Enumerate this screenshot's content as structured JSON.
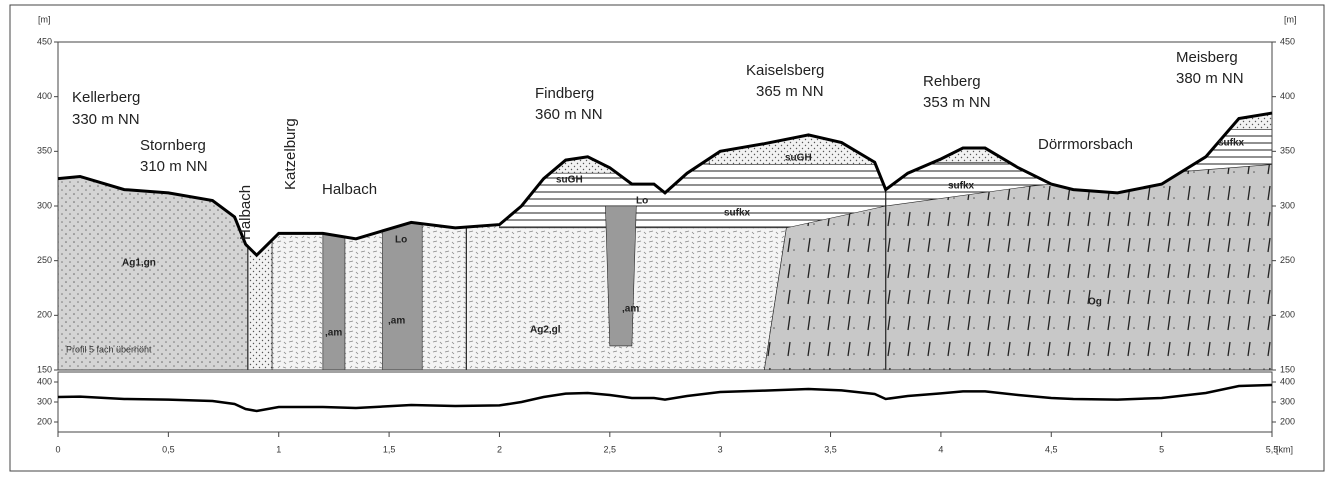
{
  "chart_data": {
    "type": "line",
    "y_unit": "[m]",
    "x_unit": "[km]",
    "x": [
      0,
      0.1,
      0.3,
      0.5,
      0.7,
      0.8,
      0.85,
      0.9,
      0.95,
      1.0,
      1.2,
      1.35,
      1.6,
      1.8,
      2.0,
      2.1,
      2.2,
      2.3,
      2.4,
      2.5,
      2.6,
      2.7,
      2.75,
      2.85,
      3.0,
      3.2,
      3.4,
      3.55,
      3.7,
      3.75,
      3.85,
      4.0,
      4.1,
      4.2,
      4.35,
      4.5,
      4.6,
      4.8,
      5.0,
      5.2,
      5.35,
      5.5
    ],
    "values": [
      325,
      327,
      315,
      312,
      305,
      290,
      265,
      255,
      265,
      275,
      275,
      270,
      285,
      280,
      283,
      300,
      325,
      342,
      345,
      335,
      320,
      320,
      312,
      330,
      350,
      357,
      365,
      358,
      340,
      315,
      330,
      343,
      353,
      353,
      335,
      320,
      315,
      312,
      320,
      345,
      380,
      385
    ],
    "color": "#000000",
    "xlim": [
      0,
      5.5
    ],
    "xticks": [
      0,
      {
        "value": 0.5,
        "label": "0,5"
      },
      1,
      {
        "value": 1.5,
        "label": "1,5"
      },
      2,
      {
        "value": 2.5,
        "label": "2,5"
      },
      3,
      {
        "value": 3.5,
        "label": "3,5"
      },
      4,
      {
        "value": 4.5,
        "label": "4,5"
      },
      5,
      {
        "value": 5.5,
        "label": "5,5"
      }
    ],
    "ylim": [
      150,
      450
    ],
    "yticks": [
      150,
      200,
      250,
      300,
      350,
      400,
      450
    ],
    "overview": {
      "ylim": [
        150,
        450
      ],
      "yticks": [
        200,
        300,
        400
      ]
    },
    "annotations": [
      "Kellerberg",
      "330 m NN",
      "Stornberg",
      "310 m NN",
      "Halbach",
      "Katzelburg",
      "Halbach",
      "Findberg",
      "360 m NN",
      "Kaiselsberg",
      "365 m NN",
      "Rehberg",
      "353 m NN",
      "Dörrmorsbach",
      "Meisberg",
      "380 m NN",
      "suGH",
      "suGH",
      "Lo",
      "sufkx",
      "sufkx",
      "sufkx",
      "Lo",
      "Ag1,gn",
      "Ag2,gl",
      ",am",
      ",am",
      ",am",
      "Og",
      "Profil 5 fach überhöht"
    ]
  }
}
